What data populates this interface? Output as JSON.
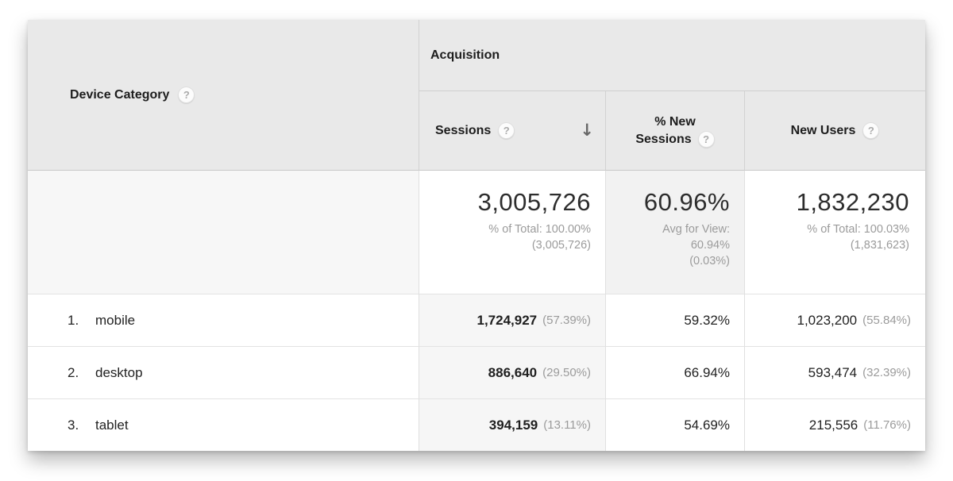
{
  "icons": {
    "help": "?",
    "sort_desc": "↓"
  },
  "colors": {
    "header_bg": "#e9e9e9",
    "sorted_column_bg": "#f6f6f6",
    "avg_cell_bg": "#f2f2f2",
    "primary_text": "#222222",
    "secondary_text": "#9b9b9b"
  },
  "table": {
    "dimension_header": {
      "label": "Device Category"
    },
    "group_header_label": "Acquisition",
    "col_sessions": {
      "label": "Sessions"
    },
    "col_new_sessions": {
      "line1": "% New",
      "line2": "Sessions"
    },
    "col_new_users": {
      "label": "New Users"
    },
    "summary": {
      "sessions": {
        "value": "3,005,726",
        "sub1": "% of Total: 100.00%",
        "sub2": "(3,005,726)"
      },
      "new_sessions": {
        "value": "60.96%",
        "sub1": "Avg for View:",
        "sub2": "60.94%",
        "sub3": "(0.03%)"
      },
      "new_users": {
        "value": "1,832,230",
        "sub1": "% of Total: 100.03%",
        "sub2": "(1,831,623)"
      }
    },
    "rows": [
      {
        "rank": "1.",
        "device": "mobile",
        "sessions": "1,724,927",
        "sessions_share": "(57.39%)",
        "pct_new_sessions": "59.32%",
        "new_users": "1,023,200",
        "new_users_share": "(55.84%)"
      },
      {
        "rank": "2.",
        "device": "desktop",
        "sessions": "886,640",
        "sessions_share": "(29.50%)",
        "pct_new_sessions": "66.94%",
        "new_users": "593,474",
        "new_users_share": "(32.39%)"
      },
      {
        "rank": "3.",
        "device": "tablet",
        "sessions": "394,159",
        "sessions_share": "(13.11%)",
        "pct_new_sessions": "54.69%",
        "new_users": "215,556",
        "new_users_share": "(11.76%)"
      }
    ]
  }
}
